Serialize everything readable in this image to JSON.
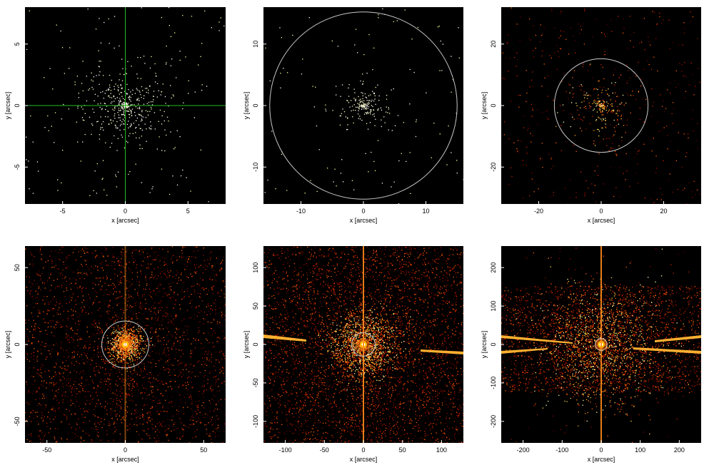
{
  "chart_data": [
    {
      "type": "heatmap",
      "xlabel": "x [arcsec]",
      "ylabel": "y [arcsec]",
      "xlim": [
        -8,
        8
      ],
      "ylim": [
        -8,
        8
      ],
      "xticks": [
        -5,
        0,
        5
      ],
      "yticks": [
        -5,
        0,
        5
      ],
      "colormap": "black-red-yellow-white",
      "overlays": [
        {
          "shape": "crosshair",
          "x": 0,
          "y": 0,
          "color": "#22bb22"
        }
      ]
    },
    {
      "type": "heatmap",
      "xlabel": "x [arcsec]",
      "ylabel": "y [arcsec]",
      "xlim": [
        -16,
        16
      ],
      "ylim": [
        -16,
        16
      ],
      "xticks": [
        -10,
        0,
        10
      ],
      "yticks": [
        -10,
        0,
        10
      ],
      "colormap": "black-red-yellow-white",
      "overlays": [
        {
          "shape": "circle",
          "x": 0,
          "y": 0,
          "r": 15,
          "color": "#c8c8c8"
        }
      ]
    },
    {
      "type": "heatmap",
      "xlabel": "x [arcsec]",
      "ylabel": "y [arcsec]",
      "xlim": [
        -32,
        32
      ],
      "ylim": [
        -32,
        32
      ],
      "xticks": [
        -20,
        0,
        20
      ],
      "yticks": [
        -20,
        0,
        20
      ],
      "colormap": "black-red-yellow-white",
      "overlays": [
        {
          "shape": "circle",
          "x": 0,
          "y": 0,
          "r": 15,
          "color": "#c8c8c8"
        }
      ]
    },
    {
      "type": "heatmap",
      "xlabel": "x [arcsec]",
      "ylabel": "y [arcsec]",
      "xlim": [
        -64,
        64
      ],
      "ylim": [
        -64,
        64
      ],
      "xticks": [
        -50,
        0,
        50
      ],
      "yticks": [
        -50,
        0,
        50
      ],
      "colormap": "black-red-yellow-white",
      "overlays": [
        {
          "shape": "circle",
          "x": 0,
          "y": 0,
          "r": 15,
          "color": "#c8c8c8"
        }
      ]
    },
    {
      "type": "heatmap",
      "xlabel": "x [arcsec]",
      "ylabel": "y [arcsec]",
      "xlim": [
        -128,
        128
      ],
      "ylim": [
        -128,
        128
      ],
      "xticks": [
        -100,
        -50,
        0,
        50,
        100
      ],
      "yticks": [
        -100,
        -50,
        0,
        50,
        100
      ],
      "colormap": "black-red-yellow-white",
      "overlays": [
        {
          "shape": "circle",
          "x": 0,
          "y": 0,
          "r": 15,
          "color": "#c8c8c8"
        }
      ]
    },
    {
      "type": "heatmap",
      "xlabel": "x [arcsec]",
      "ylabel": "y [arcsec]",
      "xlim": [
        -256,
        256
      ],
      "ylim": [
        -256,
        256
      ],
      "xticks": [
        -200,
        -100,
        0,
        100,
        200
      ],
      "yticks": [
        -200,
        -100,
        0,
        100,
        200
      ],
      "colormap": "black-red-yellow-white",
      "overlays": [
        {
          "shape": "circle",
          "x": 0,
          "y": 0,
          "r": 15,
          "color": "#c8c8c8"
        }
      ]
    }
  ]
}
